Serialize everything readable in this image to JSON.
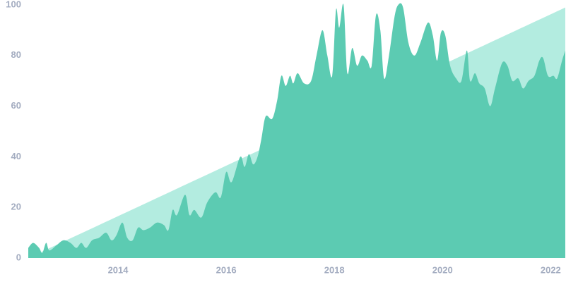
{
  "chart_data": {
    "type": "area",
    "series": [
      {
        "color": "#b3ece0",
        "x": [
          2012.34,
          2022.27
        ],
        "values": [
          0,
          99
        ]
      },
      {
        "color": "#5ccbb2",
        "x": [
          2012.34,
          2012.43,
          2012.54,
          2012.6,
          2012.67,
          2012.73,
          2012.86,
          2012.99,
          2013.12,
          2013.23,
          2013.32,
          2013.41,
          2013.52,
          2013.65,
          2013.78,
          2013.88,
          2013.97,
          2014.08,
          2014.17,
          2014.27,
          2014.37,
          2014.47,
          2014.59,
          2014.72,
          2014.85,
          2014.93,
          2015.01,
          2015.09,
          2015.24,
          2015.32,
          2015.41,
          2015.54,
          2015.65,
          2015.8,
          2015.9,
          2016.0,
          2016.1,
          2016.26,
          2016.34,
          2016.42,
          2016.5,
          2016.58,
          2016.65,
          2016.73,
          2016.85,
          2016.94,
          2017.02,
          2017.1,
          2017.18,
          2017.24,
          2017.32,
          2017.44,
          2017.57,
          2017.67,
          2017.78,
          2017.87,
          2017.96,
          2018.03,
          2018.09,
          2018.17,
          2018.24,
          2018.33,
          2018.42,
          2018.51,
          2018.61,
          2018.69,
          2018.77,
          2018.85,
          2018.92,
          2019.01,
          2019.11,
          2019.18,
          2019.27,
          2019.37,
          2019.48,
          2019.59,
          2019.73,
          2019.82,
          2019.9,
          2019.97,
          2020.05,
          2020.14,
          2020.25,
          2020.35,
          2020.45,
          2020.51,
          2020.6,
          2020.68,
          2020.78,
          2020.88,
          2020.97,
          2021.1,
          2021.2,
          2021.29,
          2021.4,
          2021.49,
          2021.59,
          2021.7,
          2021.79,
          2021.86,
          2021.95,
          2022.05,
          2022.12,
          2022.21,
          2022.27
        ],
        "values": [
          4,
          6,
          4,
          2,
          6,
          3,
          5,
          7,
          6,
          4,
          6,
          4,
          7,
          8,
          10,
          7,
          9,
          14,
          8,
          7,
          12,
          11,
          12,
          14,
          13,
          11,
          19,
          17,
          25,
          17,
          19,
          16,
          22,
          26,
          24,
          34,
          30,
          40,
          36,
          41,
          37,
          40,
          47,
          56,
          55,
          62,
          72,
          68,
          72,
          69,
          73,
          69,
          70,
          80,
          90,
          80,
          72,
          98,
          91,
          100,
          73,
          83,
          76,
          80,
          78,
          76,
          96,
          90,
          71,
          80,
          95,
          100,
          99,
          85,
          80,
          85,
          93,
          88,
          78,
          89,
          88,
          76,
          71,
          70,
          82,
          70,
          73,
          69,
          67,
          60,
          67,
          77,
          76,
          70,
          71,
          67,
          70,
          72,
          78,
          79,
          72,
          72,
          71,
          78,
          82
        ]
      }
    ],
    "xlim": [
      2012.34,
      2022.27
    ],
    "xticks": [
      2014,
      2016,
      2018,
      2020,
      2022
    ],
    "ylim": [
      0,
      100
    ],
    "yticks": [
      0,
      20,
      40,
      60,
      80,
      100
    ],
    "grid": false
  }
}
